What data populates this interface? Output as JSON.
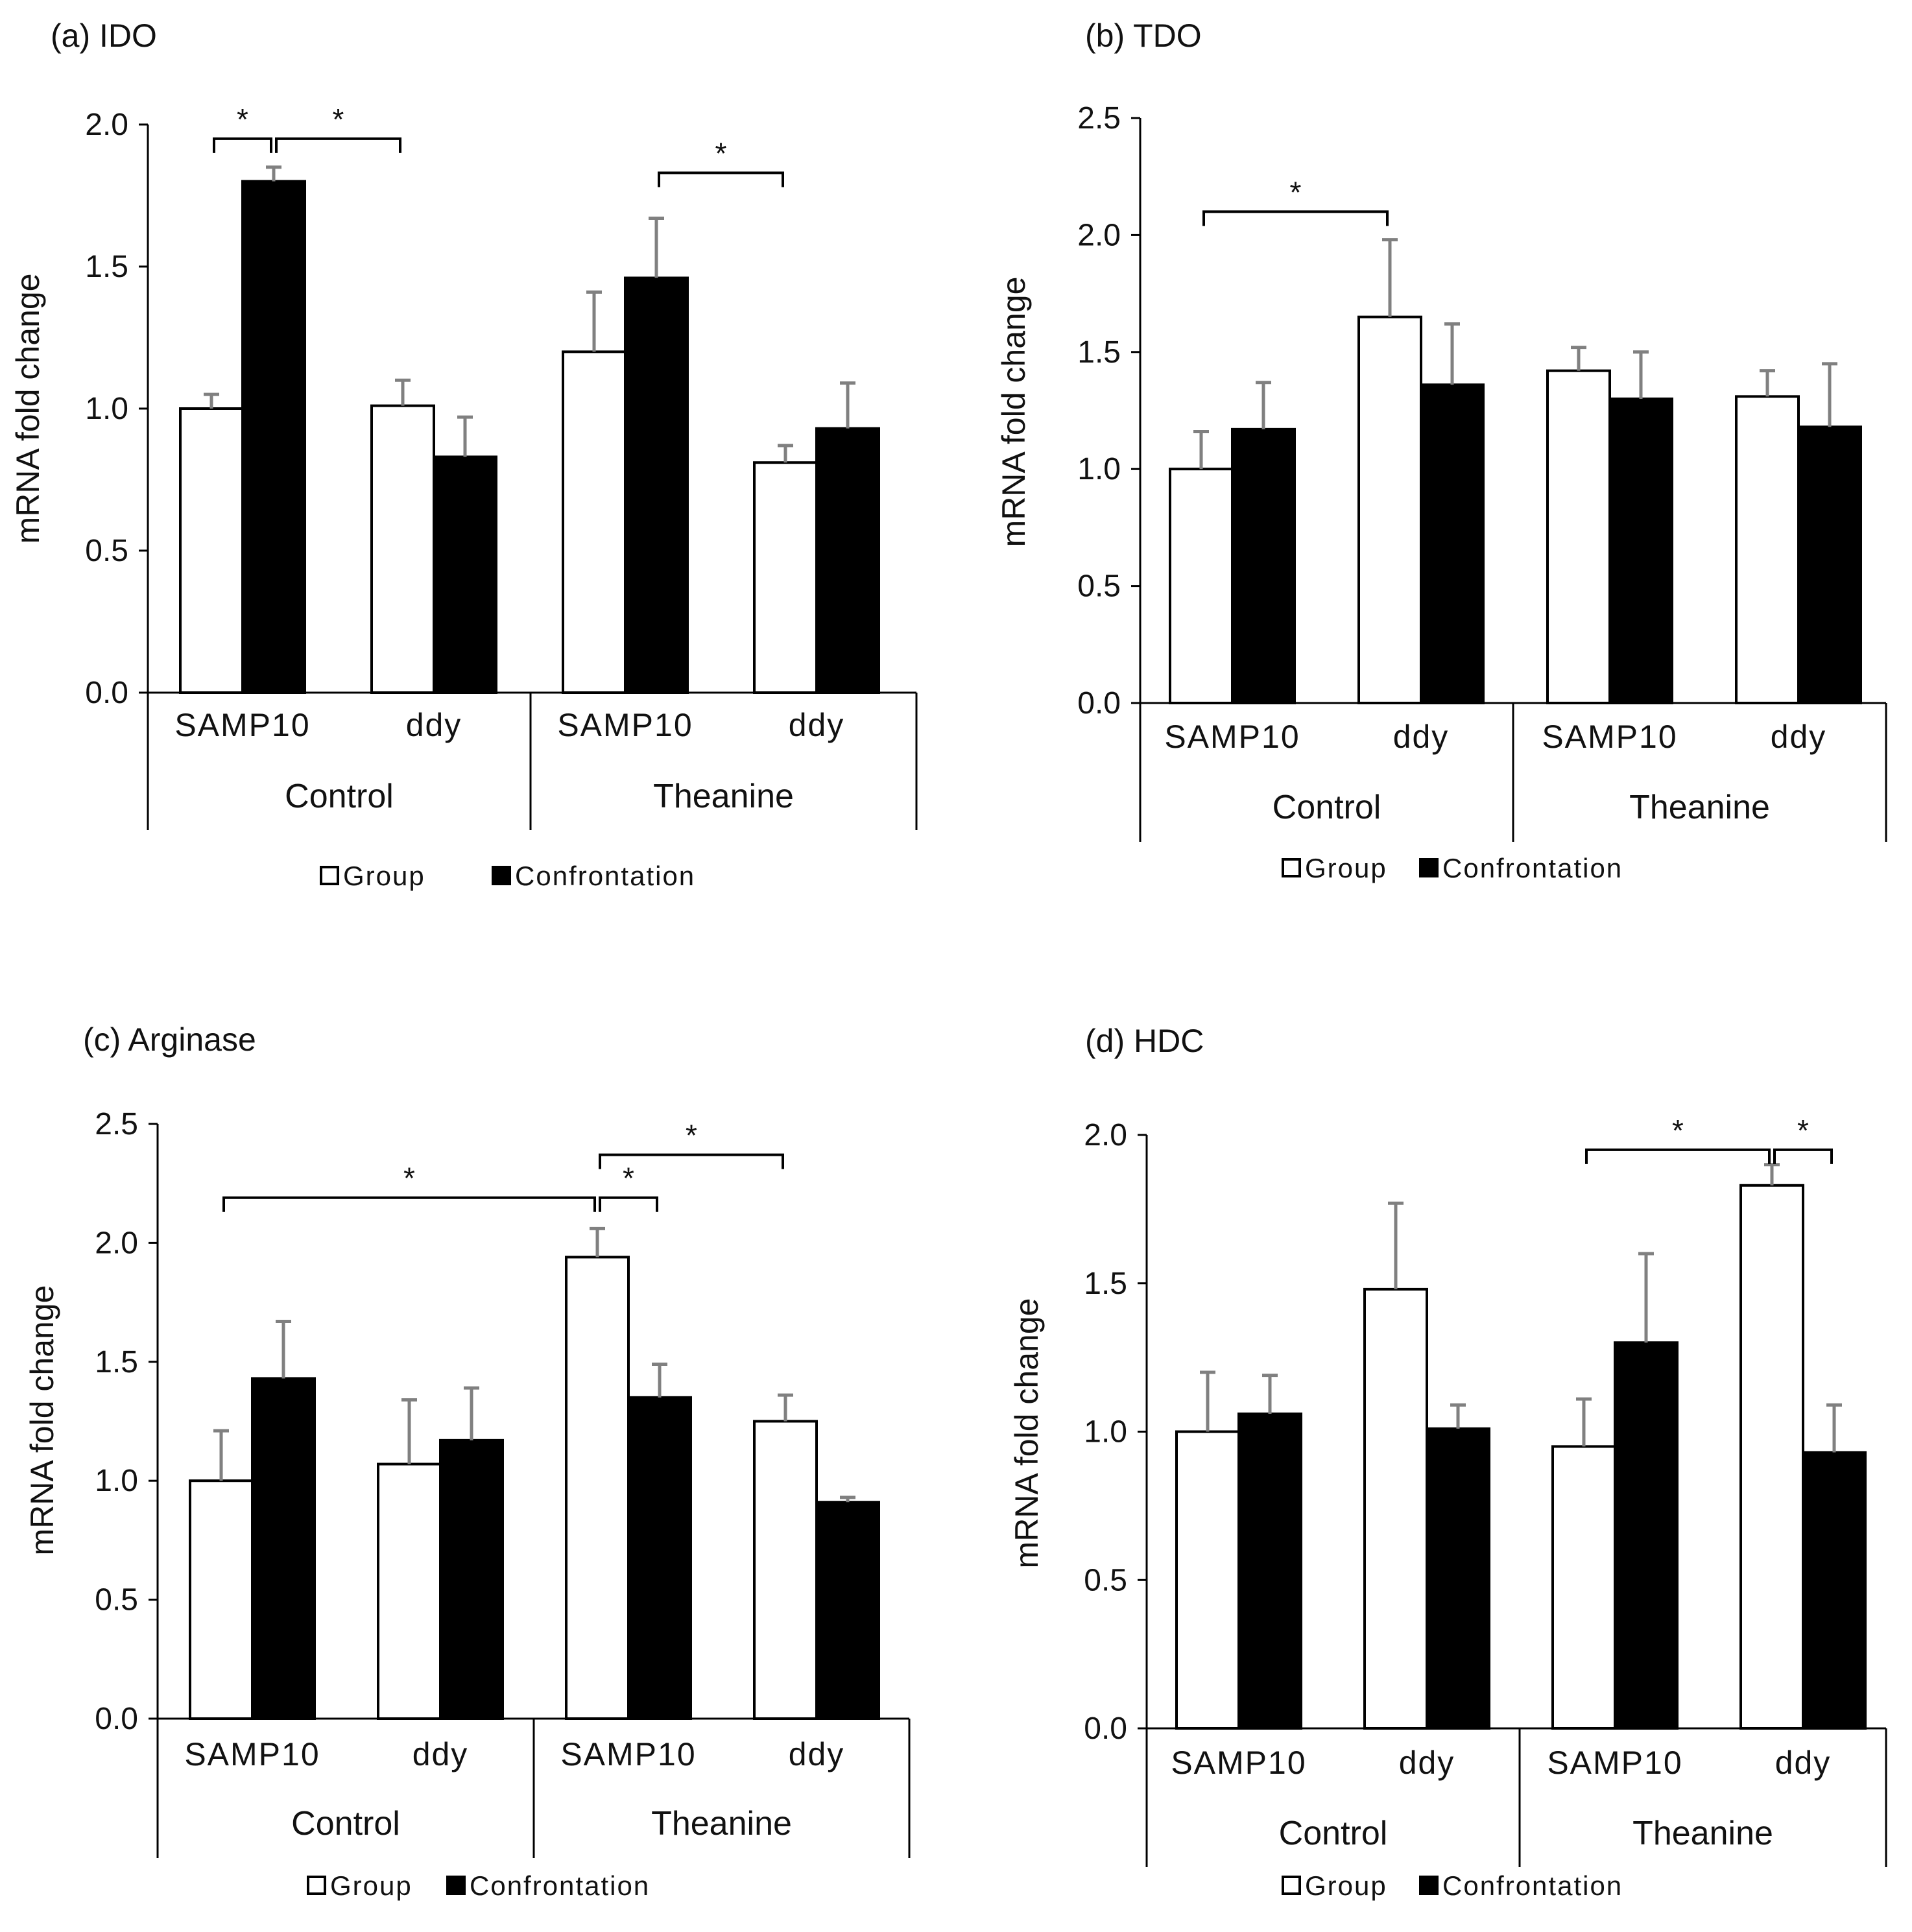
{
  "figure": {
    "colors": {
      "group": "#ffffff",
      "confrontation": "#000000",
      "error_bar": "#808080",
      "axis": "#000000"
    }
  },
  "chart_data": [
    {
      "type": "bar",
      "panel": "a",
      "title": "(a)  IDO",
      "ylabel": "mRNA fold change",
      "ylim": [
        0,
        2.0
      ],
      "yticks": [
        "0.0",
        "0.5",
        "1.0",
        "1.5",
        "2.0"
      ],
      "categories": [
        "SAMP10",
        "ddy",
        "SAMP10",
        "ddy"
      ],
      "groups": [
        "Control",
        "Theanine"
      ],
      "legend": [
        "Group",
        "Confrontation"
      ],
      "series": [
        {
          "name": "Group",
          "values": [
            1.0,
            1.01,
            1.2,
            0.81
          ],
          "errors": [
            0.05,
            0.09,
            0.21,
            0.06
          ]
        },
        {
          "name": "Confrontation",
          "values": [
            1.8,
            0.83,
            1.46,
            0.93
          ],
          "errors": [
            0.05,
            0.14,
            0.21,
            0.16
          ]
        }
      ],
      "significance": [
        {
          "from": [
            0,
            0
          ],
          "to": [
            0,
            1
          ],
          "label": "*",
          "level": 1.95
        },
        {
          "from": [
            0,
            1
          ],
          "to": [
            1,
            0
          ],
          "label": "*",
          "level": 1.95
        },
        {
          "from": [
            2,
            1
          ],
          "to": [
            3,
            0
          ],
          "label": "*",
          "level": 1.83
        }
      ]
    },
    {
      "type": "bar",
      "panel": "b",
      "title": "(b) TDO",
      "ylabel": "mRNA fold change",
      "ylim": [
        0,
        2.5
      ],
      "yticks": [
        "0.0",
        "0.5",
        "1.0",
        "1.5",
        "2.0",
        "2.5"
      ],
      "categories": [
        "SAMP10",
        "ddy",
        "SAMP10",
        "ddy"
      ],
      "groups": [
        "Control",
        "Theanine"
      ],
      "legend": [
        "Group",
        "Confrontation"
      ],
      "series": [
        {
          "name": "Group",
          "values": [
            1.0,
            1.65,
            1.42,
            1.31
          ],
          "errors": [
            0.16,
            0.33,
            0.1,
            0.11
          ]
        },
        {
          "name": "Confrontation",
          "values": [
            1.17,
            1.36,
            1.3,
            1.18
          ],
          "errors": [
            0.2,
            0.26,
            0.2,
            0.27
          ]
        }
      ],
      "significance": [
        {
          "from": [
            0,
            0
          ],
          "to": [
            1,
            0
          ],
          "label": "*",
          "level": 2.1
        }
      ]
    },
    {
      "type": "bar",
      "panel": "c",
      "title": "(c) Arginase",
      "ylabel": "mRNA fold change",
      "ylim": [
        0,
        2.5
      ],
      "yticks": [
        "0.0",
        "0.5",
        "1.0",
        "1.5",
        "2.0",
        "2.5"
      ],
      "categories": [
        "SAMP10",
        "ddy",
        "SAMP10",
        "ddy"
      ],
      "groups": [
        "Control",
        "Theanine"
      ],
      "legend": [
        "Group",
        "Confrontation"
      ],
      "series": [
        {
          "name": "Group",
          "values": [
            1.0,
            1.07,
            1.94,
            1.25
          ],
          "errors": [
            0.21,
            0.27,
            0.12,
            0.11
          ]
        },
        {
          "name": "Confrontation",
          "values": [
            1.43,
            1.17,
            1.35,
            0.91
          ],
          "errors": [
            0.24,
            0.22,
            0.14,
            0.02
          ]
        }
      ],
      "significance": [
        {
          "from": [
            0,
            0
          ],
          "to": [
            2,
            0
          ],
          "label": "*",
          "level": 2.19
        },
        {
          "from": [
            2,
            0
          ],
          "to": [
            2,
            1
          ],
          "label": "*",
          "level": 2.19
        },
        {
          "from": [
            2,
            0
          ],
          "to": [
            3,
            0
          ],
          "label": "*",
          "level": 2.37
        }
      ]
    },
    {
      "type": "bar",
      "panel": "d",
      "title": "(d) HDC",
      "ylabel": "mRNA fold change",
      "ylim": [
        0,
        2.0
      ],
      "yticks": [
        "0.0",
        "0.5",
        "1.0",
        "1.5",
        "2.0"
      ],
      "categories": [
        "SAMP10",
        "ddy",
        "SAMP10",
        "ddy"
      ],
      "groups": [
        "Control",
        "Theanine"
      ],
      "legend": [
        "Group",
        "Confrontation"
      ],
      "series": [
        {
          "name": "Group",
          "values": [
            1.0,
            1.48,
            0.95,
            1.83
          ],
          "errors": [
            0.2,
            0.29,
            0.16,
            0.07
          ]
        },
        {
          "name": "Confrontation",
          "values": [
            1.06,
            1.01,
            1.3,
            0.93
          ],
          "errors": [
            0.13,
            0.08,
            0.3,
            0.16
          ]
        }
      ],
      "significance": [
        {
          "from": [
            2,
            0
          ],
          "to": [
            3,
            0
          ],
          "label": "*",
          "level": 1.95
        },
        {
          "from": [
            3,
            0
          ],
          "to": [
            3,
            1
          ],
          "label": "*",
          "level": 1.95
        }
      ]
    }
  ]
}
